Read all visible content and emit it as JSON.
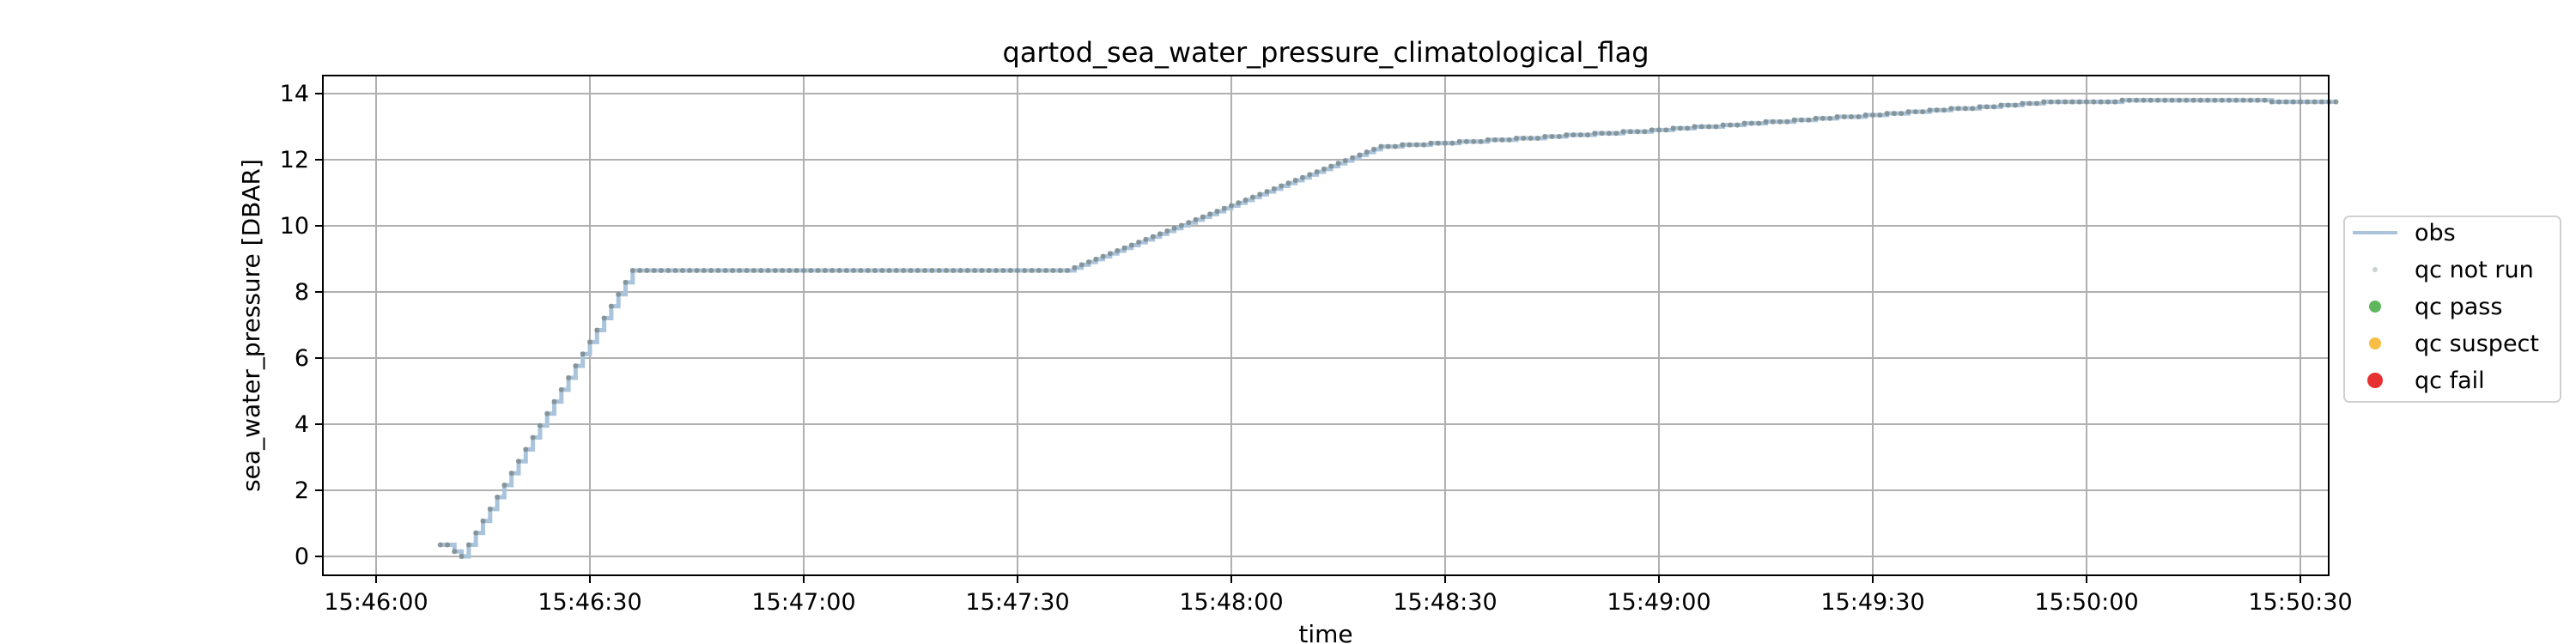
{
  "chart_data": {
    "type": "scatter",
    "title": "qartod_sea_water_pressure_climatological_flag",
    "xlabel": "time",
    "ylabel": "sea_water_pressure [DBAR]",
    "x_ticks": [
      "15:46:00",
      "15:46:30",
      "15:47:00",
      "15:47:30",
      "15:48:00",
      "15:48:30",
      "15:49:00",
      "15:49:30",
      "15:50:00",
      "15:50:30"
    ],
    "y_ticks": [
      "0",
      "2",
      "4",
      "6",
      "8",
      "10",
      "12",
      "14"
    ],
    "xlim": [
      "15:46:00",
      "15:50:30"
    ],
    "ylim": [
      -0.5,
      14.5
    ],
    "grid": true,
    "legend_position": "center-right outside",
    "series": [
      {
        "name": "obs",
        "kind": "line",
        "color": "#a9c4dc"
      },
      {
        "name": "qc not run",
        "kind": "marker",
        "color": "#7f8c8d"
      },
      {
        "name": "qc pass",
        "kind": "marker",
        "color": "#4daf4a"
      },
      {
        "name": "qc suspect",
        "kind": "marker",
        "color": "#f5b731"
      },
      {
        "name": "qc fail",
        "kind": "marker",
        "color": "#e41a1c"
      }
    ],
    "key_points": [
      {
        "x": "15:46:09",
        "y": 0.35
      },
      {
        "x": "15:46:10",
        "y": 0.35
      },
      {
        "x": "15:46:11",
        "y": 0.15
      },
      {
        "x": "15:46:12",
        "y": 0.0
      },
      {
        "x": "15:46:13",
        "y": 0.35
      },
      {
        "x": "15:46:36",
        "y": 8.65
      },
      {
        "x": "15:47:37",
        "y": 8.65
      },
      {
        "x": "15:48:21",
        "y": 12.4
      },
      {
        "x": "15:48:30",
        "y": 12.5
      },
      {
        "x": "15:49:00",
        "y": 12.9
      },
      {
        "x": "15:49:30",
        "y": 13.35
      },
      {
        "x": "15:49:55",
        "y": 13.75
      },
      {
        "x": "15:50:15",
        "y": 13.8
      },
      {
        "x": "15:50:35",
        "y": 13.75
      }
    ]
  }
}
